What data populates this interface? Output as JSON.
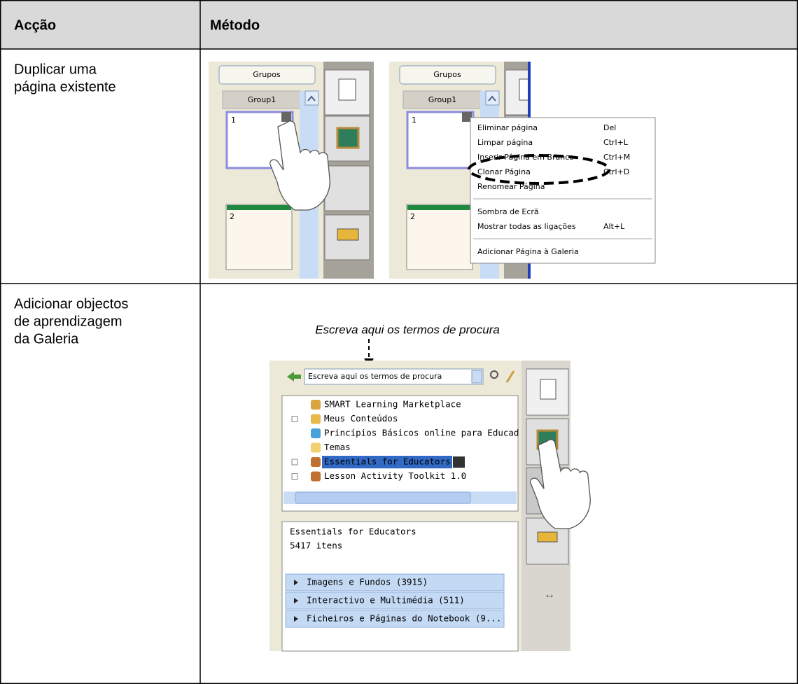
{
  "table": {
    "headers": [
      "Acção",
      "Método"
    ],
    "rows": [
      {
        "action": [
          "Duplicar uma",
          "página existente"
        ]
      },
      {
        "action": [
          "Adicionar objectos",
          "de aprendizagem",
          "da Galeria"
        ]
      }
    ]
  },
  "screenshot_1": {
    "button": "Grupos",
    "group": "Group1",
    "pages": [
      "1",
      "2"
    ]
  },
  "screenshot_2": {
    "button": "Grupos",
    "group": "Group1",
    "pages": [
      "1",
      "2"
    ],
    "menu": [
      {
        "label": "Eliminar página",
        "shortcut": "Del"
      },
      {
        "label": "Limpar página",
        "shortcut": "Ctrl+L"
      },
      {
        "label": "Inserir Página em Branco",
        "shortcut": "Ctrl+M"
      },
      {
        "label": "Clonar Página",
        "shortcut": "Ctrl+D"
      },
      {
        "label": "Renomear Página",
        "separator_after": true
      },
      {
        "label": "Sombra de Ecrã"
      },
      {
        "label": "Mostrar todas as ligações",
        "shortcut": "Alt+L",
        "disabled": true,
        "separator_after": true
      },
      {
        "label": "Adicionar Página à Galeria"
      }
    ]
  },
  "gallery": {
    "caption": "Escreva aqui os termos de procura",
    "search": "Escreva aqui os termos de procura",
    "tree": [
      {
        "label": "SMART Learning Marketplace",
        "icon": "#d9a441",
        "expand": false
      },
      {
        "label": "Meus Conteúdos",
        "icon": "#e8b84a",
        "expand": true
      },
      {
        "label": "Princípios Básicos online para Educad",
        "icon": "#4aa0d8",
        "expand": false
      },
      {
        "label": "Temas",
        "icon": "#f0d070",
        "expand": false
      },
      {
        "label": "Essentials for Educators",
        "icon": "#c07030",
        "expand": true,
        "selected": true
      },
      {
        "label": "Lesson Activity Toolkit 1.0",
        "icon": "#c07030",
        "expand": true
      }
    ],
    "selected_title": "Essentials for Educators",
    "count": "5417 itens",
    "categories": [
      "Imagens e Fundos (3915)",
      "Interactivo e Multimédia (511)",
      "Ficheiros e Páginas do Notebook (9..."
    ],
    "resize": "↔"
  }
}
